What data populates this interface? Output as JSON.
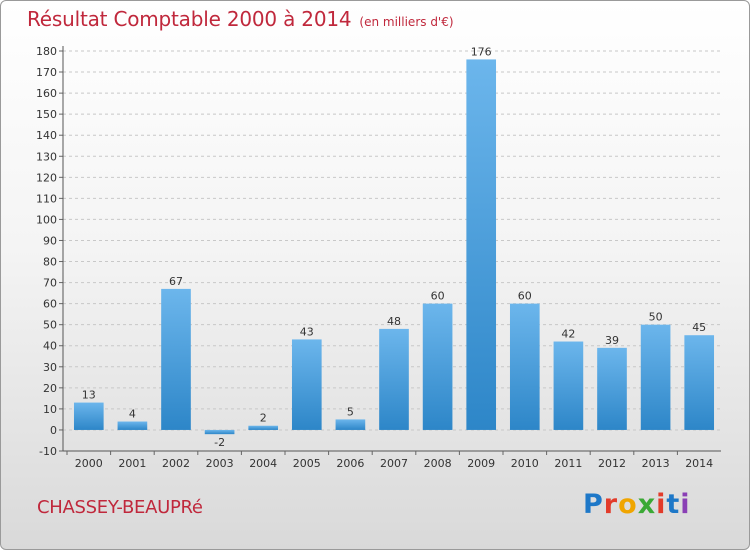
{
  "header": {
    "title": "Résultat Comptable 2000 à 2014",
    "subtitle": "(en milliers d'€)"
  },
  "footer": {
    "commune": "CHASSEY-BEAUPRé",
    "logo_text": "Proxiti",
    "logo_colors": [
      "#1e78c8",
      "#e23b2a",
      "#f0a500",
      "#3aa935",
      "#e23b2a",
      "#1e78c8",
      "#8a3fb5"
    ]
  },
  "chart_data": {
    "type": "bar",
    "categories": [
      "2000",
      "2001",
      "2002",
      "2003",
      "2004",
      "2005",
      "2006",
      "2007",
      "2008",
      "2009",
      "2010",
      "2011",
      "2012",
      "2013",
      "2014"
    ],
    "values": [
      13,
      4,
      67,
      -2,
      2,
      43,
      5,
      48,
      60,
      176,
      60,
      42,
      39,
      50,
      45
    ],
    "data_labels": [
      "13",
      "4",
      "67",
      "-2",
      "2",
      "43",
      "5",
      "48",
      "60",
      "176",
      "60",
      "42",
      "39",
      "50",
      "45"
    ],
    "yticks": [
      -10,
      0,
      10,
      20,
      30,
      40,
      50,
      60,
      70,
      80,
      90,
      100,
      110,
      120,
      130,
      140,
      150,
      160,
      170,
      180
    ],
    "ylim": [
      -10,
      180
    ],
    "grid": "horizontal dashed",
    "bar_color": "#2d86c8",
    "bar_highlight_color": "#6cb6ec"
  }
}
